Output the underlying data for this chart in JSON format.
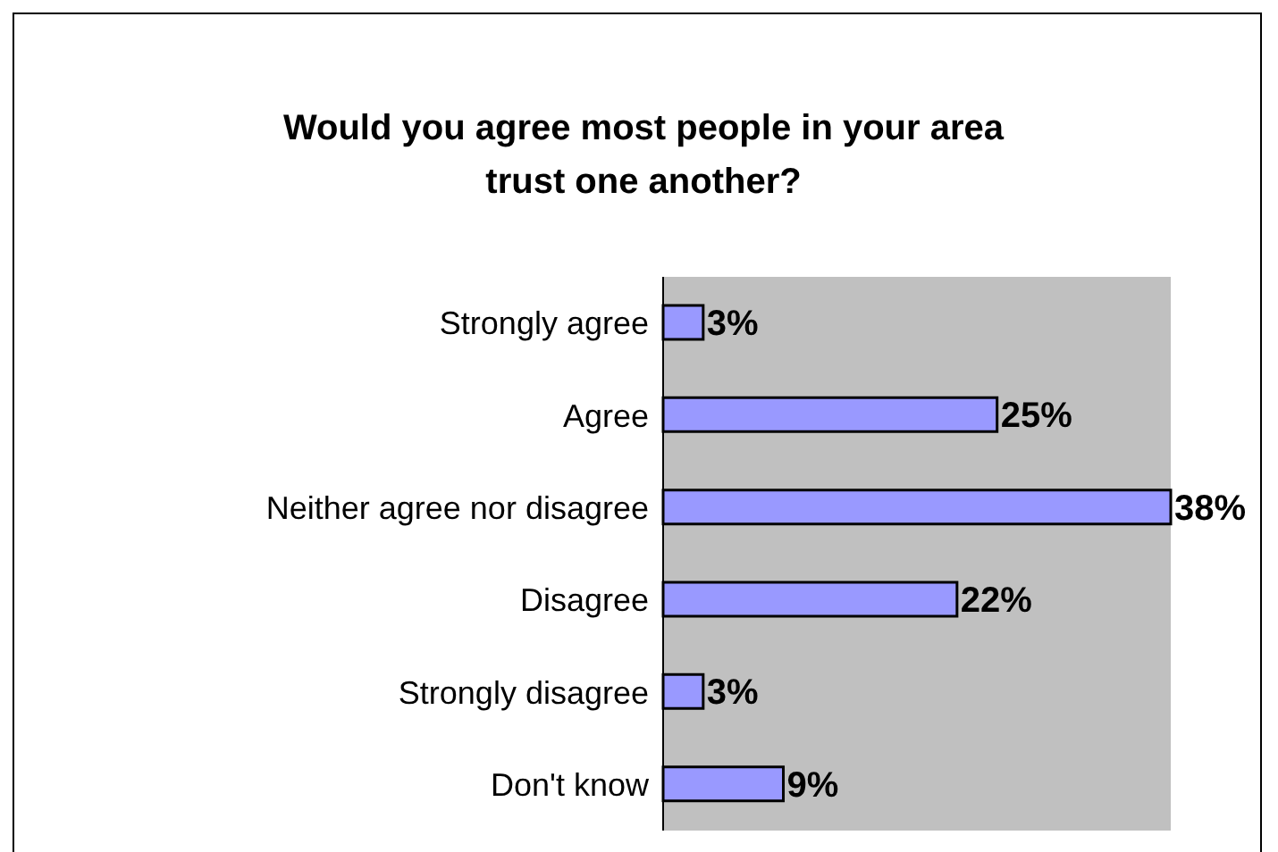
{
  "chart_data": {
    "type": "bar",
    "orientation": "horizontal",
    "title": "Would you agree most people in your area trust one another?",
    "categories": [
      "Strongly agree",
      "Agree",
      "Neither agree nor disagree",
      "Disagree",
      "Strongly disagree",
      "Don't know"
    ],
    "values": [
      3,
      25,
      38,
      22,
      3,
      9
    ],
    "value_labels": [
      "3%",
      "25%",
      "38%",
      "22%",
      "3%",
      "9%"
    ],
    "color": "#9999ff",
    "grid": false
  }
}
